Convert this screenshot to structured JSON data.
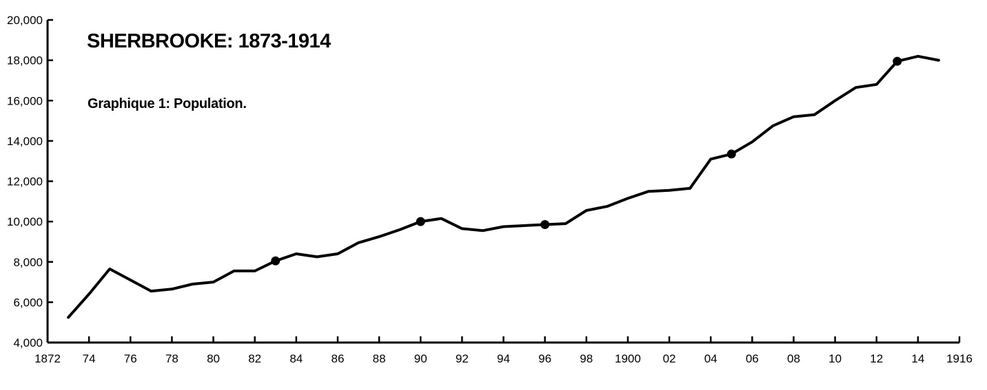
{
  "chart_data": {
    "type": "line",
    "title": "SHERBROOKE:  1873-1914",
    "subtitle": "Graphique 1:  Population.",
    "xlabel": "",
    "ylabel": "",
    "xlim": [
      1872,
      1916
    ],
    "ylim": [
      4000,
      20000
    ],
    "grid": false,
    "legend": "none",
    "line_color": "#000000",
    "x_ticks": [
      {
        "value": 1872,
        "label": "1872"
      },
      {
        "value": 1874,
        "label": "74"
      },
      {
        "value": 1876,
        "label": "76"
      },
      {
        "value": 1878,
        "label": "78"
      },
      {
        "value": 1880,
        "label": "80"
      },
      {
        "value": 1882,
        "label": "82"
      },
      {
        "value": 1884,
        "label": "84"
      },
      {
        "value": 1886,
        "label": "86"
      },
      {
        "value": 1888,
        "label": "88"
      },
      {
        "value": 1890,
        "label": "90"
      },
      {
        "value": 1892,
        "label": "92"
      },
      {
        "value": 1894,
        "label": "94"
      },
      {
        "value": 1896,
        "label": "96"
      },
      {
        "value": 1898,
        "label": "98"
      },
      {
        "value": 1900,
        "label": "1900"
      },
      {
        "value": 1902,
        "label": "02"
      },
      {
        "value": 1904,
        "label": "04"
      },
      {
        "value": 1906,
        "label": "06"
      },
      {
        "value": 1908,
        "label": "08"
      },
      {
        "value": 1910,
        "label": "10"
      },
      {
        "value": 1912,
        "label": "12"
      },
      {
        "value": 1914,
        "label": "14"
      },
      {
        "value": 1916,
        "label": "1916"
      }
    ],
    "y_ticks": [
      {
        "value": 4000,
        "label": "4,000"
      },
      {
        "value": 6000,
        "label": "6,000"
      },
      {
        "value": 8000,
        "label": "8,000"
      },
      {
        "value": 10000,
        "label": "10,000"
      },
      {
        "value": 12000,
        "label": "12,000"
      },
      {
        "value": 14000,
        "label": "14,000"
      },
      {
        "value": 16000,
        "label": "16,000"
      },
      {
        "value": 18000,
        "label": "18,000"
      },
      {
        "value": 20000,
        "label": "20,000"
      }
    ],
    "series": [
      {
        "x": [
          1873,
          1874,
          1875,
          1876,
          1877,
          1878,
          1879,
          1880,
          1881,
          1882,
          1883,
          1884,
          1885,
          1886,
          1887,
          1888,
          1889,
          1890,
          1891,
          1892,
          1893,
          1894,
          1895,
          1896,
          1897,
          1898,
          1899,
          1900,
          1901,
          1902,
          1903,
          1904,
          1905,
          1906,
          1907,
          1908,
          1909,
          1910,
          1911,
          1912,
          1913,
          1914,
          1915
        ],
        "values": [
          5250,
          6400,
          7650,
          7100,
          6550,
          6650,
          6900,
          7000,
          7550,
          7550,
          8050,
          8400,
          8250,
          8400,
          8950,
          9250,
          9600,
          10000,
          10150,
          9650,
          9550,
          9750,
          9800,
          9850,
          9900,
          10550,
          10750,
          11150,
          11500,
          11550,
          11650,
          13100,
          13350,
          13950,
          14750,
          15200,
          15300,
          16000,
          16650,
          16800,
          17950,
          18200,
          18000
        ],
        "markers_at": [
          1883,
          1890,
          1896,
          1905,
          1913
        ]
      }
    ]
  }
}
